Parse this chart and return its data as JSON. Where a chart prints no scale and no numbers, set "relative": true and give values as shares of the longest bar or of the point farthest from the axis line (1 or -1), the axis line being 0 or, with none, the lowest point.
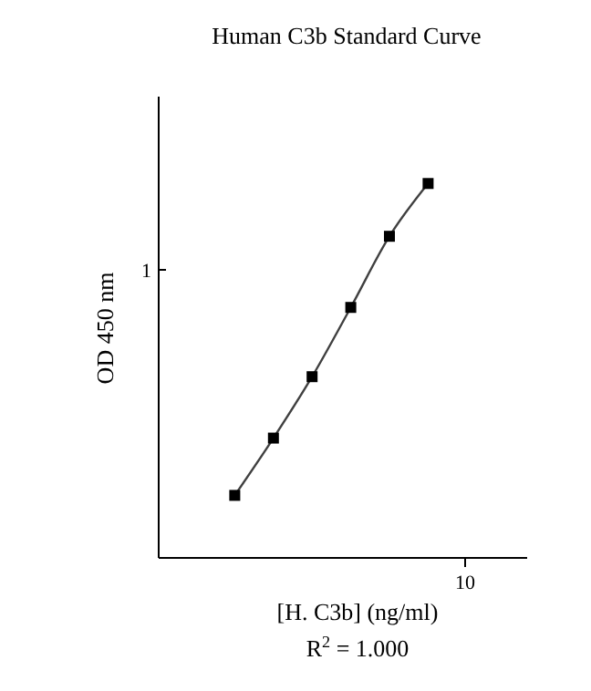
{
  "chart_data": {
    "type": "line",
    "title": "Human C3b Standard Curve",
    "xlabel": "[H. C3b] (ng/ml)",
    "ylabel": "OD 450 nm",
    "annotations": [
      "1",
      "10",
      "R$^{2}$ = 1.000"
    ],
    "categories": [
      null,
      null,
      null,
      null,
      null,
      null
    ],
    "relative": true,
    "series": [
      {
        "color": "#000000",
        "values": [
          0.167,
          0.32,
          0.484,
          0.669,
          0.859,
          1
        ]
      }
    ],
    "marker": "square",
    "line_style": "solid"
  }
}
